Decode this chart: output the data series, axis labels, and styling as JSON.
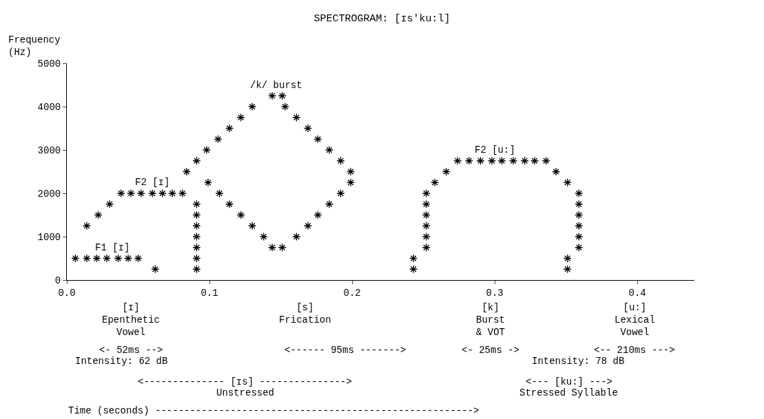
{
  "chart_data": {
    "type": "scatter",
    "title": "SPECTROGRAM: [ɪs'ku:l]",
    "ylabel": "Frequency\n(Hz)",
    "xlim": [
      0,
      0.44
    ],
    "ylim": [
      0,
      5000
    ],
    "xticks": [
      {
        "value": 0,
        "label": "0.0"
      },
      0.1,
      0.2,
      0.3,
      0.4
    ],
    "yticks": [
      0,
      1000,
      2000,
      3000,
      4000,
      5000
    ],
    "marker": "cross",
    "series": [
      {
        "color": "#000000",
        "x": [
          0.006,
          0.014,
          0.021,
          0.028,
          0.036,
          0.043,
          0.05,
          0.062
        ],
        "values": [
          500,
          500,
          500,
          500,
          500,
          500,
          500,
          250
        ]
      },
      {
        "color": "#000000",
        "x": [
          0.014,
          0.022,
          0.03,
          0.038,
          0.045,
          0.052,
          0.06,
          0.067,
          0.074,
          0.081,
          0.084,
          0.091,
          0.098,
          0.106,
          0.114,
          0.122,
          0.13,
          0.144,
          0.151,
          0.153,
          0.161,
          0.169,
          0.176,
          0.184,
          0.192,
          0.199,
          0.199,
          0.192,
          0.184,
          0.176,
          0.169,
          0.161,
          0.151,
          0.144,
          0.099,
          0.107,
          0.114,
          0.122,
          0.13,
          0.138
        ],
        "values": [
          1250,
          1500,
          1750,
          2000,
          2000,
          2000,
          2000,
          2000,
          2000,
          2000,
          2500,
          2750,
          3000,
          3250,
          3500,
          3750,
          4000,
          4250,
          4250,
          4000,
          3750,
          3500,
          3250,
          3000,
          2750,
          2500,
          2250,
          2000,
          1750,
          1500,
          1250,
          1000,
          750,
          750,
          2250,
          2000,
          1750,
          1500,
          1250,
          1000
        ]
      },
      {
        "color": "#000000",
        "x": [
          0.091,
          0.091,
          0.091,
          0.091,
          0.091,
          0.091,
          0.091
        ],
        "values": [
          1750,
          1500,
          1250,
          1000,
          750,
          500,
          250
        ]
      },
      {
        "color": "#000000",
        "x": [
          0.243,
          0.243,
          0.252,
          0.252,
          0.252,
          0.252,
          0.252,
          0.252,
          0.258,
          0.266,
          0.274,
          0.282,
          0.29,
          0.298,
          0.305,
          0.313,
          0.321,
          0.328,
          0.336,
          0.343,
          0.351,
          0.359,
          0.359,
          0.359,
          0.359,
          0.359,
          0.359,
          0.351,
          0.351
        ],
        "values": [
          250,
          500,
          750,
          1000,
          1250,
          1500,
          1750,
          2000,
          2250,
          2500,
          2750,
          2750,
          2750,
          2750,
          2750,
          2750,
          2750,
          2750,
          2750,
          2500,
          2250,
          2000,
          1750,
          1500,
          1250,
          1000,
          750,
          500,
          250
        ]
      }
    ],
    "annotations": [
      "/k/ burst",
      "F2 [ɪ]",
      "F1 [ɪ]",
      "F2 [u:]",
      "[ɪ]\nEpenthetic\nVowel",
      "[s]\nFrication",
      "[k]\nBurst\n& VOT",
      "[u:]\nLexical\nVowel",
      "<- 52ms -->",
      "<------ 95ms ------->",
      "<- 25ms ->",
      "<-- 210ms --->",
      "Intensity: 62 dB",
      "Intensity: 78 dB",
      "<-------------- [ɪs] --------------->",
      "Unstressed",
      "<--- [ku:] --->",
      "Stressed Syllable",
      "Time (seconds) ------------------------------------------------------->"
    ]
  }
}
